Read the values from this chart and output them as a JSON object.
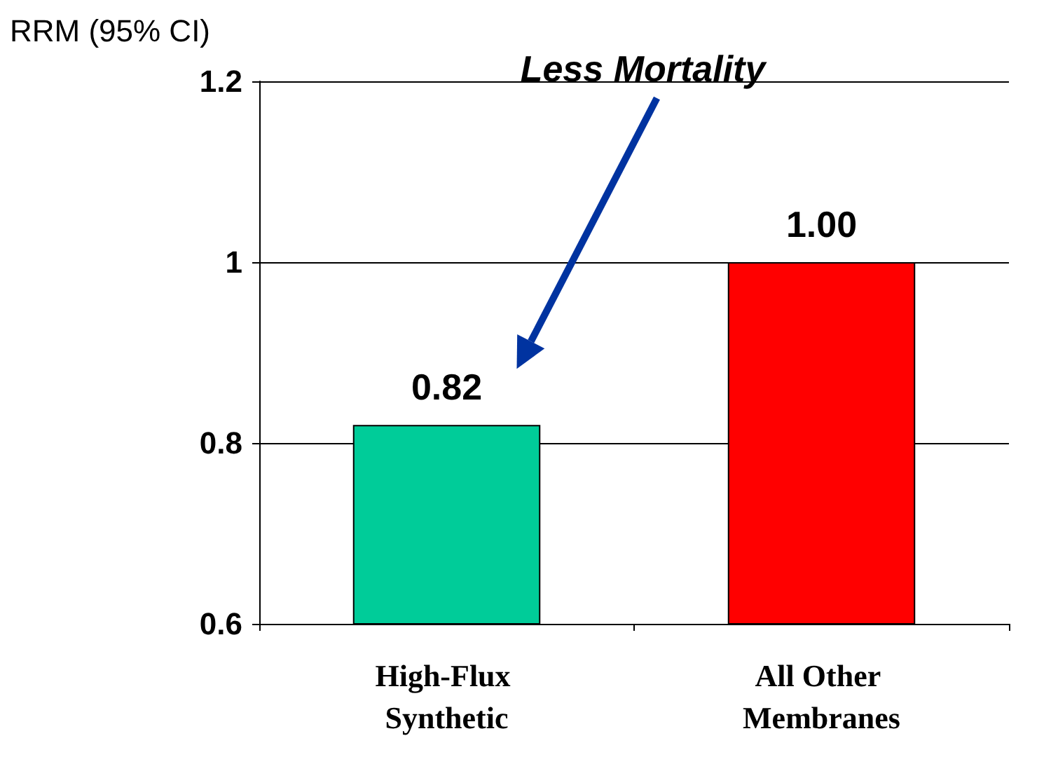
{
  "chart_data": {
    "type": "bar",
    "ylabel": "RRM (95% CI)",
    "categories": [
      "High-Flux Synthetic",
      "All Other Membranes"
    ],
    "values": [
      0.82,
      1.0
    ],
    "colors": [
      "#00cc99",
      "#ff0000"
    ],
    "value_labels": [
      "0.82",
      "1.00"
    ],
    "ylim": [
      0.6,
      1.2
    ],
    "yticks": [
      0.6,
      0.8,
      1,
      1.2
    ],
    "grid": "y",
    "annotations": [
      "Less Mortality"
    ]
  }
}
